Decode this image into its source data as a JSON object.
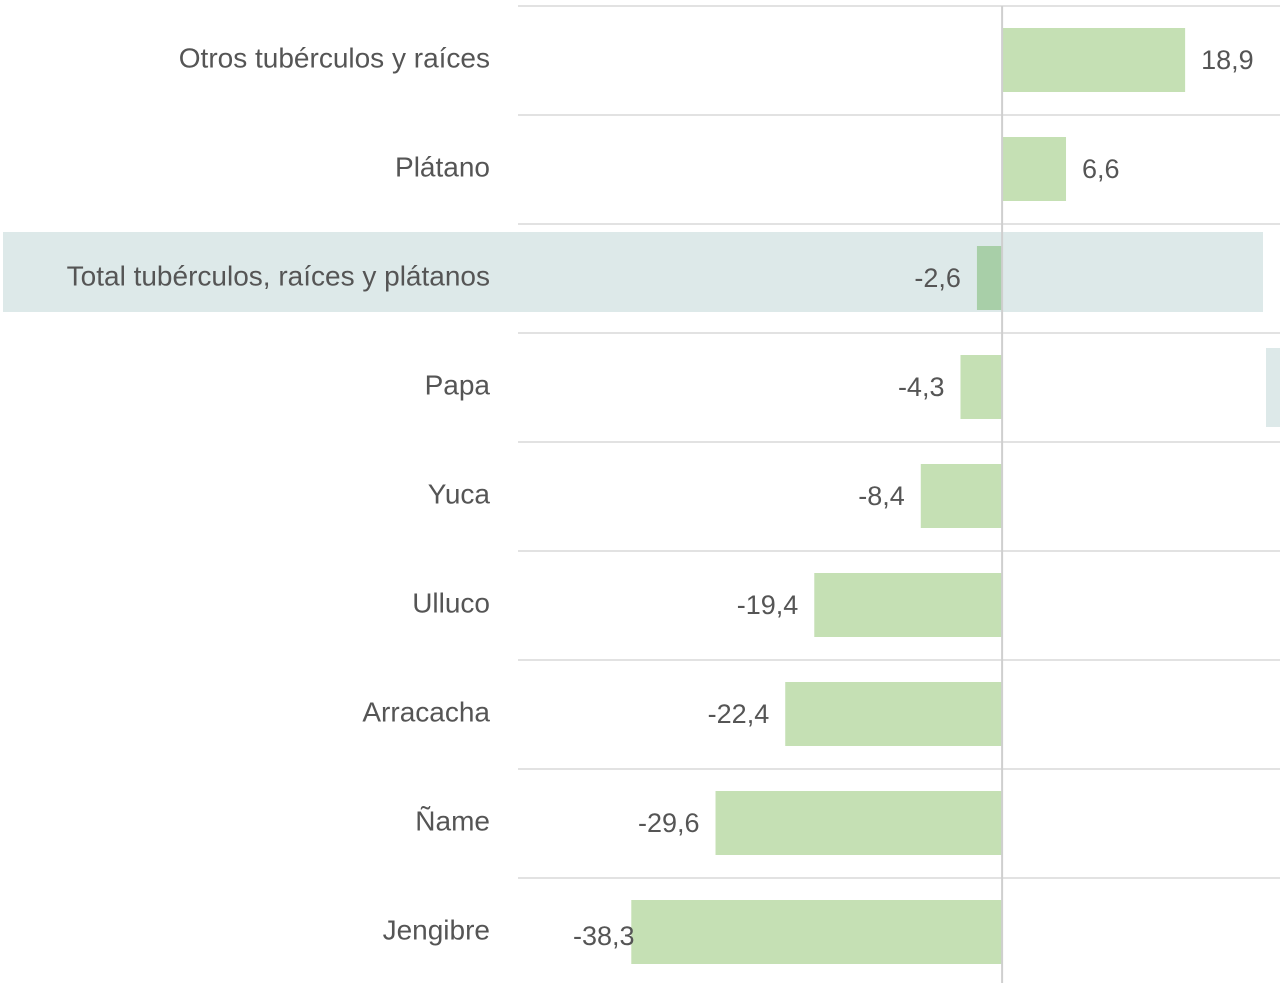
{
  "chart_data": {
    "type": "barh",
    "categories": [
      "Otros tubérculos y raíces",
      "Plátano",
      "Total tubérculos, raíces y plátanos",
      "Papa",
      "Yuca",
      "Ulluco",
      "Arracacha",
      "Ñame",
      "Jengibre"
    ],
    "values": [
      18.9,
      6.6,
      -2.6,
      -4.3,
      -8.4,
      -19.4,
      -22.4,
      -29.6,
      -38.3
    ],
    "value_labels": [
      "18,9",
      "6,6",
      "-2,6",
      "-4,3",
      "-8,4",
      "-19,4",
      "-22,4",
      "-29,6",
      "-38,3"
    ],
    "color": "#c5e0b4",
    "highlight_index": 2,
    "highlight_color": "#a8cfa8",
    "highlight_background": "#dde9e9",
    "xlim": [
      -50,
      28.7
    ],
    "grid": true
  }
}
